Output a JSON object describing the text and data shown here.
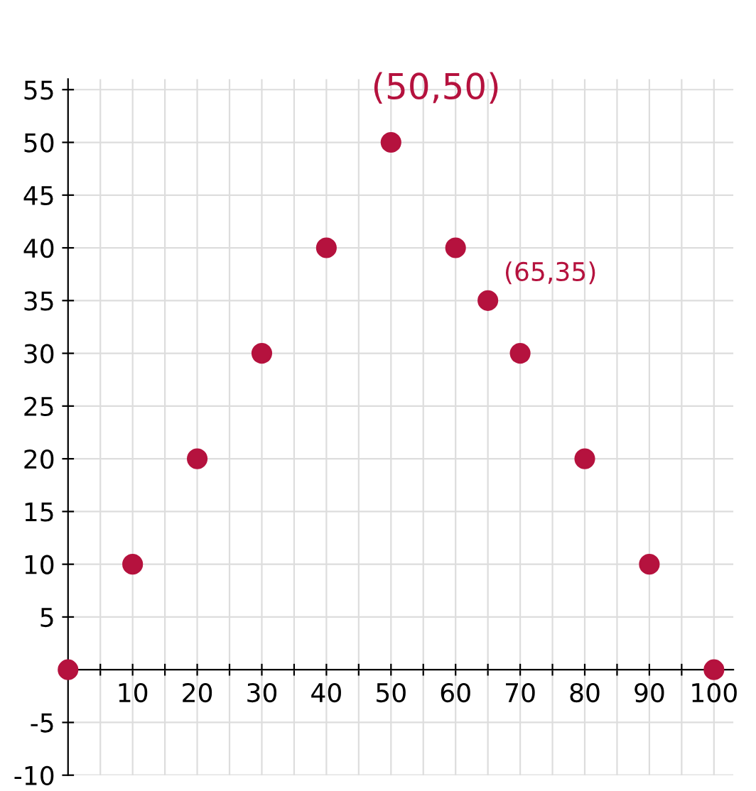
{
  "chart_data": {
    "type": "scatter",
    "x": [
      0,
      10,
      20,
      30,
      40,
      50,
      60,
      65,
      70,
      80,
      90,
      100
    ],
    "values": [
      0,
      10,
      20,
      30,
      40,
      50,
      40,
      35,
      30,
      20,
      10,
      0
    ],
    "color": "#b5123e",
    "marker": "circle",
    "xlim": [
      0,
      103
    ],
    "ylim": [
      -10,
      56
    ],
    "xticks": [
      {
        "value": 0,
        "label": null
      },
      {
        "value": 5,
        "label": null
      },
      10,
      {
        "value": 15,
        "label": null
      },
      20,
      {
        "value": 25,
        "label": null
      },
      30,
      {
        "value": 35,
        "label": null
      },
      40,
      {
        "value": 45,
        "label": null
      },
      50,
      {
        "value": 55,
        "label": null
      },
      60,
      {
        "value": 65,
        "label": null
      },
      70,
      {
        "value": 75,
        "label": null
      },
      80,
      {
        "value": 85,
        "label": null
      },
      90,
      {
        "value": 95,
        "label": null
      },
      100
    ],
    "yticks": [
      -10,
      -5,
      {
        "value": 0,
        "label": null
      },
      5,
      10,
      15,
      20,
      25,
      30,
      35,
      40,
      45,
      50,
      55
    ],
    "grid": true,
    "annotations": [
      {
        "text": "(50,50)",
        "x": 50,
        "y": 50
      },
      {
        "text": "(65,35)",
        "x": 65,
        "y": 35
      }
    ]
  }
}
